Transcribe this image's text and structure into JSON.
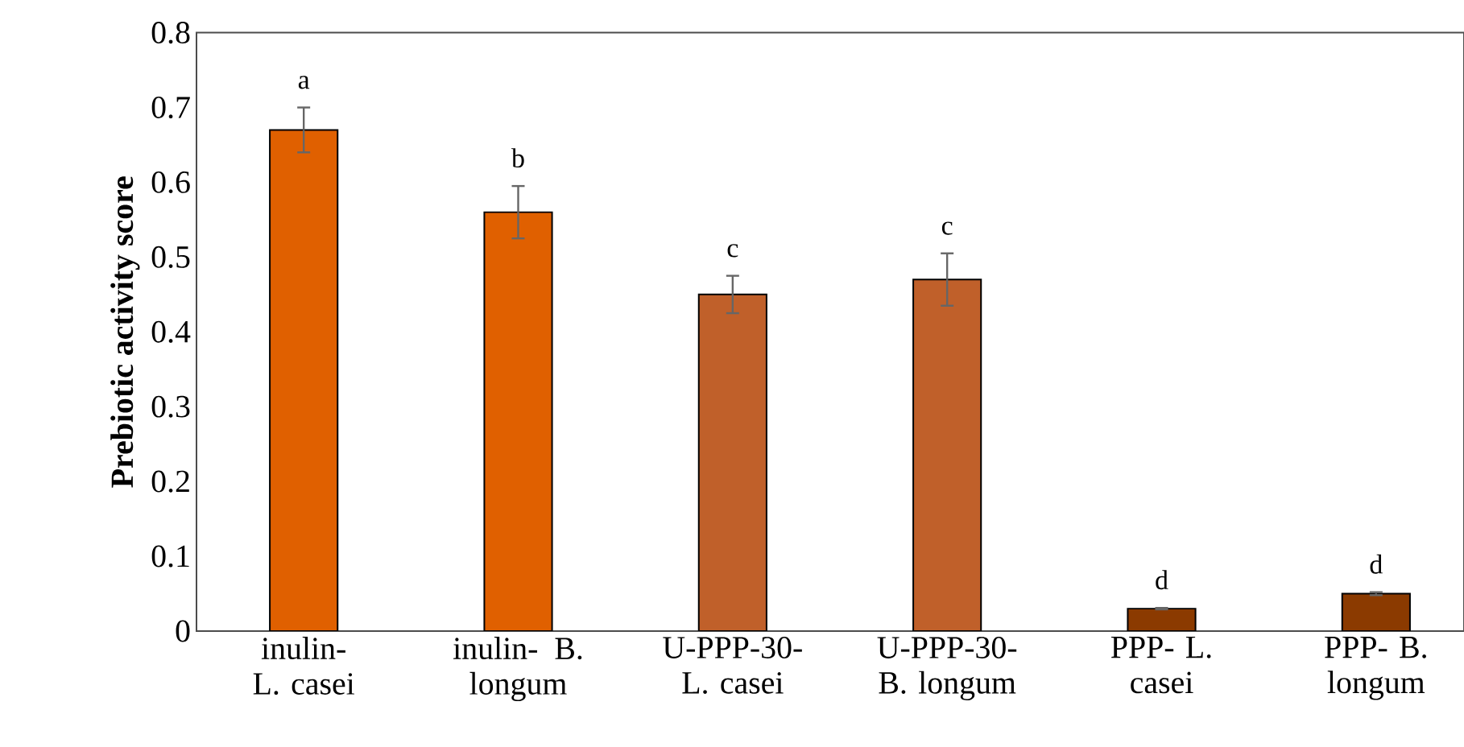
{
  "chart_data": {
    "type": "bar",
    "ylabel": "Prebiotic activity score",
    "categories": [
      "inulin- L. casei",
      "inulin- B. longum",
      "U-PPP-30- L. casei",
      "U-PPP-30- B. longum",
      "PPP- L. casei",
      "PPP- B. longum"
    ],
    "values": [
      0.67,
      0.56,
      0.45,
      0.47,
      0.03,
      0.05
    ],
    "errors": [
      0.03,
      0.035,
      0.025,
      0.035,
      0.001,
      0.002
    ],
    "colors": [
      "#e06000",
      "#e06000",
      "#c0602a",
      "#c0602a",
      "#8b3a00",
      "#8b3a00"
    ],
    "ylim": [
      0,
      0.8
    ],
    "yticks": [
      0,
      0.1,
      0.2,
      0.3,
      0.4,
      0.5,
      0.6,
      0.7,
      0.8
    ],
    "grid": false,
    "annotations": [
      "a",
      "b",
      "c",
      "c",
      "d",
      "d"
    ]
  }
}
